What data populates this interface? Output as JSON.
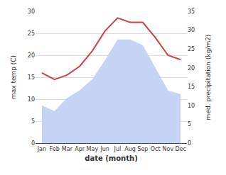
{
  "chart_data": {
    "type": "line",
    "xlabel": "date (month)",
    "ylabel": "max temp (C)",
    "y2label": "med. precipitation (kg/m2)",
    "categories": [
      "Jan",
      "Feb",
      "Mar",
      "Apr",
      "May",
      "Jun",
      "Jul",
      "Aug",
      "Sep",
      "Oct",
      "Nov",
      "Dec"
    ],
    "series": [
      {
        "type": "line",
        "color": "#cc4444",
        "values": [
          16,
          14.5,
          15.5,
          17.5,
          21,
          25.5,
          28.5,
          27.5,
          27.5,
          24,
          20,
          19
        ]
      },
      {
        "type": "area",
        "color": "#c5d4f5",
        "axis": "y2",
        "values": [
          10,
          8.5,
          12,
          14,
          17,
          22,
          27.5,
          27.5,
          26,
          20,
          14,
          13
        ]
      }
    ],
    "ylim": [
      0,
      30
    ],
    "yticks": [
      0,
      5,
      10,
      15,
      20,
      25,
      30
    ],
    "y2lim": [
      0,
      35
    ],
    "y2ticks": [
      0,
      5,
      10,
      15,
      20,
      25,
      30,
      35
    ],
    "grid": true
  }
}
